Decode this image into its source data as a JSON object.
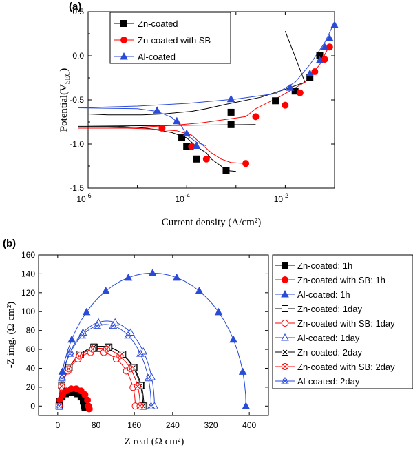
{
  "colors": {
    "zn": "#000000",
    "zn_sb": "#ff0000",
    "al": "#2a4ad8"
  },
  "chart_data": [
    {
      "type": "line",
      "panel_label": "(a)",
      "xlabel": "Current density (A/cm²)",
      "ylabel": "Potential(V",
      "ylabel_sub": "SEC",
      "ylabel_end": ")",
      "x_scale": "log",
      "xlim_exp": [
        -6,
        -1
      ],
      "ylim": [
        -1.5,
        0.5
      ],
      "x_ticks": [
        {
          "base": "10",
          "exp": "-6",
          "value": -6
        },
        {
          "base": "10",
          "exp": "-4",
          "value": -4
        },
        {
          "base": "10",
          "exp": "-2",
          "value": -2
        }
      ],
      "y_ticks": [
        "-1.5",
        "-1.0",
        "-0.5",
        "0.0",
        "0.5"
      ],
      "legend_position": "top-left",
      "series": [
        {
          "name": "Zn-coated",
          "color": "#000000",
          "marker": "square",
          "curve": [
            [
              -2.0,
              0.28
            ],
            [
              -1.6,
              -0.3
            ],
            [
              -2.0,
              -0.38
            ],
            [
              -2.5,
              -0.47
            ],
            [
              -3.2,
              -0.55
            ],
            [
              -3.6,
              -0.6
            ],
            [
              -3.9,
              -0.63
            ],
            [
              -4.1,
              -0.64
            ],
            [
              -4.5,
              -0.66
            ],
            [
              -4.9,
              -0.67
            ],
            [
              -5.2,
              -0.67
            ],
            [
              -5.6,
              -0.67
            ],
            [
              -6.0,
              -0.66
            ],
            [
              -6.2,
              -0.66
            ]
          ],
          "curve2": [
            [
              -2.6,
              -0.78
            ],
            [
              -6.2,
              -0.8
            ],
            [
              -5.4,
              -0.8
            ],
            [
              -4.8,
              -0.82
            ],
            [
              -4.3,
              -0.87
            ],
            [
              -4.0,
              -0.93
            ],
            [
              -3.8,
              -1.03
            ],
            [
              -3.6,
              -1.1
            ],
            [
              -3.5,
              -1.17
            ],
            [
              -3.3,
              -1.25
            ],
            [
              -3.2,
              -1.3
            ],
            [
              -3.0,
              -1.31
            ]
          ],
          "markers": [
            [
              -1.3,
              0.0
            ],
            [
              -1.5,
              -0.25
            ],
            [
              -1.8,
              -0.4
            ],
            [
              -2.2,
              -0.51
            ],
            [
              -3.1,
              -0.64
            ],
            [
              -3.1,
              -0.78
            ],
            [
              -4.1,
              -0.93
            ],
            [
              -4.0,
              -1.03
            ],
            [
              -3.8,
              -1.17
            ],
            [
              -3.2,
              -1.3
            ]
          ]
        },
        {
          "name": "Zn-coated with SB",
          "color": "#ff0000",
          "marker": "circle",
          "curve": [
            [
              -1.1,
              0.12
            ],
            [
              -1.3,
              -0.1
            ],
            [
              -1.6,
              -0.3
            ],
            [
              -2.1,
              -0.46
            ],
            [
              -2.6,
              -0.6
            ],
            [
              -2.8,
              -0.69
            ],
            [
              -3.2,
              -0.72
            ],
            [
              -3.7,
              -0.76
            ],
            [
              -4.3,
              -0.79
            ],
            [
              -5.0,
              -0.81
            ],
            [
              -5.6,
              -0.82
            ],
            [
              -6.2,
              -0.82
            ]
          ],
          "curve2": [
            [
              -6.2,
              -0.82
            ],
            [
              -5.2,
              -0.82
            ],
            [
              -4.7,
              -0.83
            ],
            [
              -4.2,
              -0.85
            ],
            [
              -3.9,
              -0.9
            ],
            [
              -3.7,
              -1.0
            ],
            [
              -3.5,
              -1.1
            ],
            [
              -3.3,
              -1.17
            ],
            [
              -3.1,
              -1.21
            ],
            [
              -2.8,
              -1.22
            ]
          ],
          "markers": [
            [
              -1.1,
              0.1
            ],
            [
              -1.2,
              -0.04
            ],
            [
              -1.4,
              -0.18
            ],
            [
              -1.7,
              -0.42
            ],
            [
              -2.0,
              -0.56
            ],
            [
              -2.6,
              -0.69
            ],
            [
              -4.5,
              -0.82
            ],
            [
              -3.9,
              -1.03
            ],
            [
              -3.6,
              -1.17
            ],
            [
              -2.8,
              -1.22
            ]
          ]
        },
        {
          "name": "Al-coated",
          "color": "#2a4ad8",
          "marker": "triangle",
          "curve": [
            [
              -1.0,
              0.38
            ],
            [
              -1.2,
              0.15
            ],
            [
              -1.5,
              -0.1
            ],
            [
              -1.8,
              -0.3
            ],
            [
              -2.2,
              -0.43
            ],
            [
              -3.0,
              -0.49
            ],
            [
              -4.0,
              -0.54
            ],
            [
              -5.0,
              -0.57
            ],
            [
              -6.2,
              -0.59
            ]
          ],
          "curve2": [
            [
              -6.2,
              -0.59
            ],
            [
              -5.0,
              -0.6
            ],
            [
              -4.6,
              -0.63
            ],
            [
              -4.3,
              -0.7
            ],
            [
              -4.1,
              -0.8
            ],
            [
              -4.0,
              -0.9
            ],
            [
              -3.8,
              -0.98
            ],
            [
              -3.6,
              -1.02
            ]
          ],
          "markers": [
            [
              -1.0,
              0.35
            ],
            [
              -1.1,
              0.2
            ],
            [
              -1.2,
              0.1
            ],
            [
              -1.3,
              -0.05
            ],
            [
              -1.5,
              -0.2
            ],
            [
              -1.9,
              -0.36
            ],
            [
              -3.1,
              -0.49
            ],
            [
              -4.6,
              -0.62
            ],
            [
              -4.2,
              -0.74
            ],
            [
              -4.0,
              -0.88
            ],
            [
              -3.8,
              -1.02
            ]
          ]
        }
      ]
    },
    {
      "type": "scatter",
      "panel_label": "(b)",
      "xlabel": "Z real (Ω cm²)",
      "ylabel": "-Z img. (Ω cm²)",
      "xlim": [
        -40,
        440
      ],
      "ylim": [
        -10,
        160
      ],
      "x_ticks": [
        "0",
        "80",
        "160",
        "240",
        "320",
        "400"
      ],
      "y_ticks": [
        "0",
        "20",
        "40",
        "60",
        "80",
        "100",
        "120",
        "140",
        "160"
      ],
      "legend_position": "right",
      "series": [
        {
          "name": "Zn-coated: 1h",
          "color": "#000000",
          "marker": "square-filled",
          "cx": 28,
          "r": 25,
          "start": 3,
          "end": 55,
          "hook": 2
        },
        {
          "name": "Zn-coated with SB: 1h",
          "color": "#ff0000",
          "marker": "circle-filled",
          "cx": 34,
          "r": 31,
          "start": 3,
          "end": 64,
          "hook": 3
        },
        {
          "name": "Al-coated: 1h",
          "color": "#2a4ad8",
          "marker": "triangle-filled",
          "cx": 240,
          "r": 160,
          "start": 3,
          "end": 393,
          "hook": 0
        },
        {
          "name": "Zn-coated: 1day",
          "color": "#000000",
          "marker": "square-open",
          "cx": 93,
          "r": 88,
          "start": 3,
          "end": 180,
          "hook": 0
        },
        {
          "name": "Zn-coated with SB: 1day",
          "color": "#ff0000",
          "marker": "circle-open",
          "cx": 84,
          "r": 80,
          "start": 3,
          "end": 162,
          "hook": 0
        },
        {
          "name": "Al-coated: 1day",
          "color": "#2a4ad8",
          "marker": "triangle-open",
          "cx": 130,
          "r": 125,
          "start": 3,
          "end": 202,
          "hook": 0
        },
        {
          "name": "Zn-coated: 2day",
          "color": "#000000",
          "marker": "square-cross",
          "cx": 93,
          "r": 88,
          "start": 3,
          "end": 178,
          "hook": 0
        },
        {
          "name": "Zn-coated with SB: 2day",
          "color": "#ff0000",
          "marker": "circle-cross",
          "cx": 90,
          "r": 85,
          "start": 3,
          "end": 172,
          "hook": 0
        },
        {
          "name": "Al-coated: 2day",
          "color": "#2a4ad8",
          "marker": "triangle-cross",
          "cx": 125,
          "r": 120,
          "start": 3,
          "end": 195,
          "hook": 0
        }
      ]
    }
  ]
}
